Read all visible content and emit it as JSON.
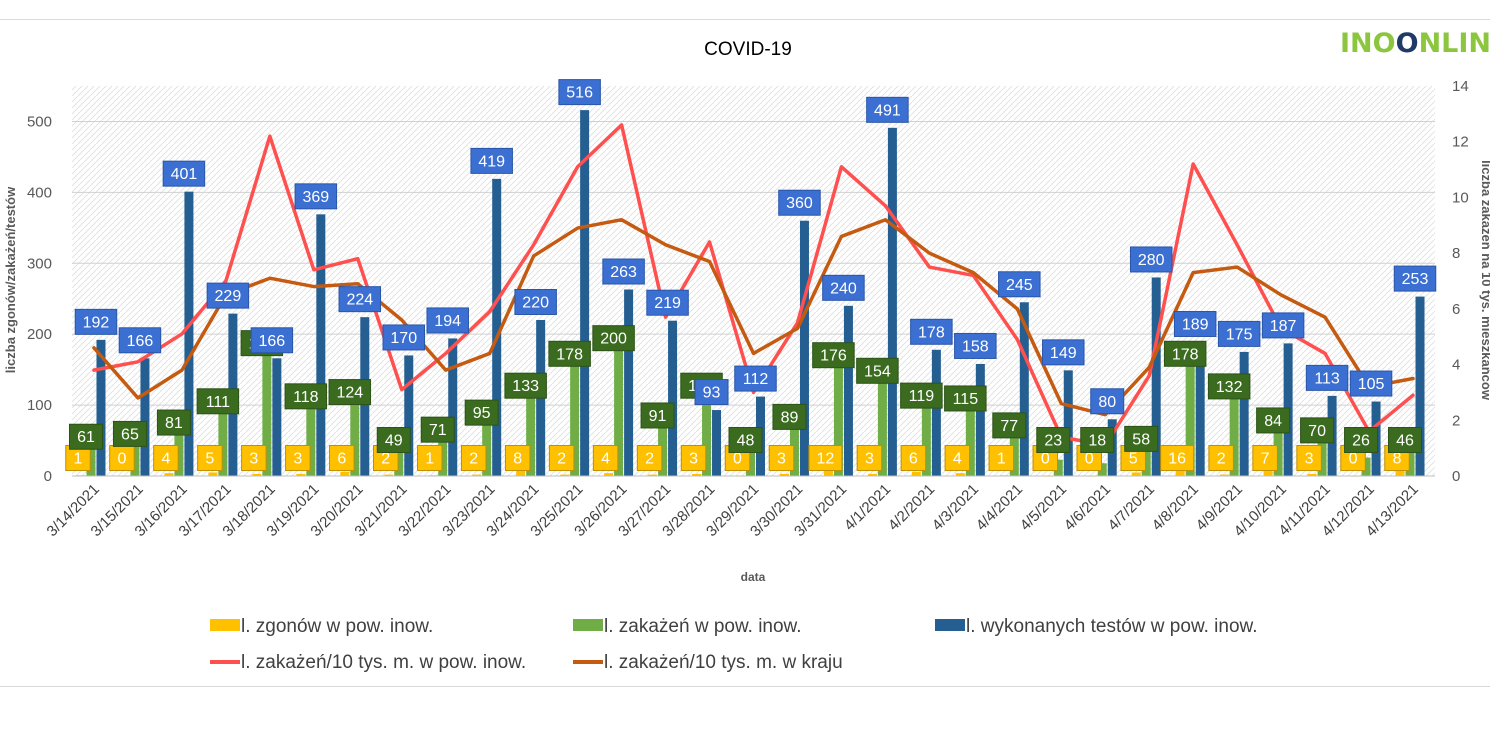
{
  "logo": {
    "text": "INOONLINE"
  },
  "chart_data": {
    "type": "bar",
    "title": "COVID-19",
    "xlabel": "data",
    "ylabel": "liczba zgonów/zakażeń/testów",
    "y2label": "liczba zakażeń na 10 tys. mieszkańców",
    "ylim": [
      0,
      550
    ],
    "y2lim": [
      0,
      14
    ],
    "yticks": [
      0,
      100,
      200,
      300,
      400,
      500
    ],
    "y2ticks": [
      0,
      2,
      4,
      6,
      8,
      10,
      12,
      14
    ],
    "legend_position": "bottom",
    "categories": [
      "3/14/2021",
      "3/15/2021",
      "3/16/2021",
      "3/17/2021",
      "3/18/2021",
      "3/19/2021",
      "3/20/2021",
      "3/21/2021",
      "3/22/2021",
      "3/23/2021",
      "3/24/2021",
      "3/25/2021",
      "3/26/2021",
      "3/27/2021",
      "3/28/2021",
      "3/29/2021",
      "3/30/2021",
      "3/31/2021",
      "4/1/2021",
      "4/2/2021",
      "4/3/2021",
      "4/4/2021",
      "4/5/2021",
      "4/6/2021",
      "4/7/2021",
      "4/8/2021",
      "4/9/2021",
      "4/10/2021",
      "4/11/2021",
      "4/12/2021",
      "4/13/2021"
    ],
    "series": [
      {
        "name": "l. zgonów w pow. inow.",
        "kind": "bar",
        "axis": "left",
        "color": "#ffc000",
        "values": [
          1,
          0,
          4,
          5,
          3,
          3,
          6,
          2,
          1,
          2,
          8,
          2,
          4,
          2,
          3,
          0,
          3,
          12,
          3,
          6,
          4,
          1,
          0,
          0,
          5,
          16,
          2,
          7,
          3,
          0,
          8
        ],
        "labels": [
          "1",
          "0",
          "4",
          "5",
          "3",
          "3",
          "6",
          "2",
          "1",
          "2",
          "8",
          "2",
          "4",
          "2",
          "3",
          "0",
          "3",
          "12",
          "3",
          "6",
          "4",
          "1",
          "0",
          "0",
          "5",
          "16",
          "2",
          "7",
          "3",
          "0",
          "8"
        ]
      },
      {
        "name": "l. zakażeń w pow. inow.",
        "kind": "bar",
        "axis": "left",
        "color": "#70ad47",
        "values": [
          61,
          65,
          81,
          111,
          193,
          118,
          124,
          49,
          71,
          95,
          133,
          178,
          200,
          91,
          133,
          48,
          89,
          176,
          154,
          119,
          115,
          77,
          23,
          18,
          58,
          178,
          132,
          84,
          70,
          26,
          46
        ],
        "labels": [
          "61",
          "65",
          "81",
          "111",
          "193",
          "118",
          "124",
          "49",
          "71",
          "95",
          "133",
          "178",
          "200",
          "91",
          "133",
          "48",
          "89",
          "176",
          "154",
          "119",
          "115",
          "77",
          "23",
          "18",
          "58",
          "178",
          "132",
          "84",
          "70",
          "26",
          "46"
        ]
      },
      {
        "name": "l. wykonanych testów w pow. inow.",
        "kind": "bar",
        "axis": "left",
        "color": "#255e91",
        "values": [
          192,
          166,
          401,
          229,
          166,
          369,
          224,
          170,
          194,
          419,
          220,
          516,
          263,
          219,
          93,
          112,
          360,
          240,
          491,
          178,
          158,
          245,
          149,
          80,
          280,
          189,
          175,
          187,
          113,
          105,
          253
        ],
        "labels": [
          "192",
          "166",
          "401",
          "229",
          "166",
          "369",
          "224",
          "170",
          "194",
          "419",
          "220",
          "516",
          "263",
          "219",
          "93",
          "112",
          "360",
          "240",
          "491",
          "178",
          "158",
          "245",
          "149",
          "80",
          "280",
          "189",
          "175",
          "187",
          "113",
          "105",
          "253"
        ]
      },
      {
        "name": "l. zakażeń/10 tys. m. w pow. inow.",
        "kind": "line",
        "axis": "right",
        "color": "#ff5050",
        "values": [
          3.8,
          4.1,
          5.1,
          7.0,
          12.2,
          7.4,
          7.8,
          3.1,
          4.4,
          5.9,
          8.3,
          11.1,
          12.6,
          5.7,
          8.4,
          3.0,
          5.5,
          11.1,
          9.7,
          7.5,
          7.2,
          4.9,
          1.4,
          1.1,
          3.6,
          11.2,
          8.3,
          5.3,
          4.4,
          1.6,
          2.9
        ]
      },
      {
        "name": "l. zakażeń/10 tys. m. w kraju",
        "kind": "line",
        "axis": "right",
        "color": "#c55a11",
        "values": [
          4.6,
          2.8,
          3.8,
          6.5,
          7.1,
          6.8,
          6.9,
          5.6,
          3.8,
          4.4,
          7.9,
          8.9,
          9.2,
          8.3,
          7.7,
          4.4,
          5.3,
          8.6,
          9.2,
          8.0,
          7.3,
          6.0,
          2.6,
          2.2,
          3.9,
          7.3,
          7.5,
          6.5,
          5.7,
          3.2,
          3.5
        ]
      }
    ]
  }
}
